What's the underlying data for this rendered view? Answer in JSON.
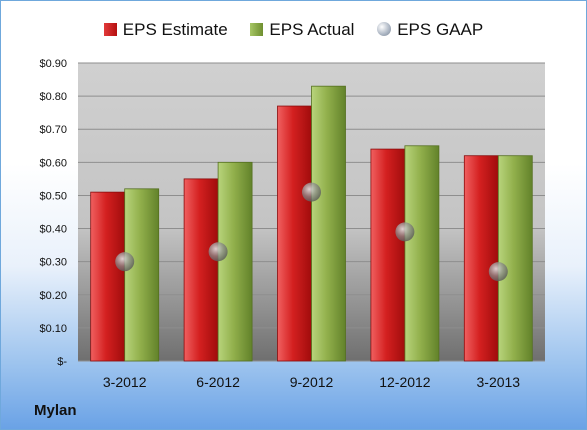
{
  "chart_data": {
    "type": "bar",
    "categories": [
      "3-2012",
      "6-2012",
      "9-2012",
      "12-2012",
      "3-2013"
    ],
    "series": [
      {
        "name": "EPS Estimate",
        "values": [
          0.51,
          0.55,
          0.77,
          0.64,
          0.62
        ],
        "color": "#c41e1e"
      },
      {
        "name": "EPS Actual",
        "values": [
          0.52,
          0.6,
          0.83,
          0.65,
          0.62
        ],
        "color": "#8caa4a"
      },
      {
        "name": "EPS GAAP",
        "values": [
          0.3,
          0.33,
          0.51,
          0.39,
          0.27
        ],
        "color": "#9aa4b2",
        "marker": "sphere"
      }
    ],
    "ylim": [
      0,
      0.9
    ],
    "yticks": [
      0.9,
      0.8,
      0.7,
      0.6,
      0.5,
      0.4,
      0.3,
      0.2,
      0.1,
      0.0
    ],
    "ytick_labels": [
      "$0.90",
      "$0.80",
      "$0.70",
      "$0.60",
      "$0.50",
      "$0.40",
      "$0.30",
      "$0.20",
      "$0.10",
      "$-"
    ],
    "grid": true,
    "legend_position": "top"
  },
  "legend": {
    "estimate": "EPS Estimate",
    "actual": "EPS Actual",
    "gaap": "EPS GAAP"
  },
  "company": "Mylan"
}
